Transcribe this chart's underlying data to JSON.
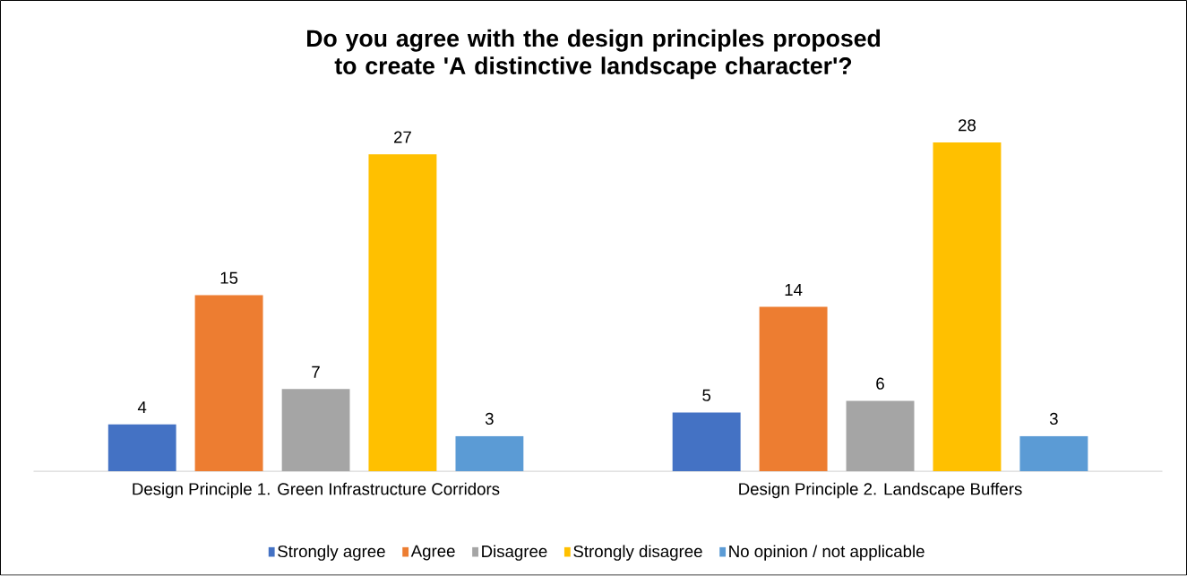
{
  "chart_data": {
    "type": "bar",
    "title": "Do you agree with the design principles proposed to create 'A distinctive landscape character'?",
    "categories": [
      "Design Principle 1. Green Infrastructure Corridors",
      "Design Principle 2. Landscape Buffers"
    ],
    "series": [
      {
        "name": "Strongly agree",
        "color": "#4472c4",
        "values": [
          4,
          5
        ]
      },
      {
        "name": "Agree",
        "color": "#ed7d31",
        "values": [
          15,
          14
        ]
      },
      {
        "name": "Disagree",
        "color": "#a5a5a5",
        "values": [
          7,
          6
        ]
      },
      {
        "name": "Strongly disagree",
        "color": "#ffc000",
        "values": [
          27,
          28
        ]
      },
      {
        "name": "No opinion / not applicable",
        "color": "#5b9bd5",
        "values": [
          3,
          3
        ]
      }
    ],
    "data_labels": true,
    "legend": "bottom"
  }
}
